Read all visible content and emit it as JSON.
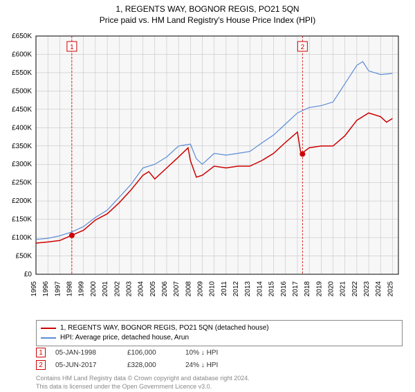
{
  "title": "1, REGENTS WAY, BOGNOR REGIS, PO21 5QN",
  "subtitle": "Price paid vs. HM Land Registry's House Price Index (HPI)",
  "chart": {
    "type": "line",
    "background_color": "#f7f7f7",
    "grid_color": "#bbbbbb",
    "axis_color": "#000000",
    "x_years": [
      1995,
      1996,
      1997,
      1998,
      1999,
      2000,
      2001,
      2002,
      2003,
      2004,
      2005,
      2006,
      2007,
      2008,
      2009,
      2010,
      2011,
      2012,
      2013,
      2014,
      2015,
      2016,
      2017,
      2018,
      2019,
      2020,
      2021,
      2022,
      2023,
      2024,
      2025
    ],
    "y_ticks": [
      0,
      50000,
      100000,
      150000,
      200000,
      250000,
      300000,
      350000,
      400000,
      450000,
      500000,
      550000,
      600000,
      650000
    ],
    "y_tick_labels": [
      "£0",
      "£50K",
      "£100K",
      "£150K",
      "£200K",
      "£250K",
      "£300K",
      "£350K",
      "£400K",
      "£450K",
      "£500K",
      "£550K",
      "£600K",
      "£650K"
    ],
    "ylim": [
      0,
      650000
    ],
    "xlim": [
      1995,
      2025.5
    ],
    "label_fontsize": 10,
    "series": [
      {
        "name": "price_paid",
        "color": "#cc0000",
        "width": 1.5,
        "x": [
          1995,
          1996,
          1997,
          1998,
          1999,
          2000,
          2001,
          2002,
          2003,
          2004,
          2004.5,
          2005,
          2006,
          2007,
          2007.8,
          2008,
          2008.5,
          2009,
          2010,
          2011,
          2012,
          2013,
          2014,
          2015,
          2016,
          2017,
          2017.3,
          2018,
          2019,
          2020,
          2021,
          2022,
          2023,
          2024,
          2024.5,
          2025
        ],
        "y": [
          85000,
          88000,
          92000,
          106000,
          120000,
          148000,
          165000,
          195000,
          230000,
          270000,
          280000,
          260000,
          290000,
          320000,
          345000,
          310000,
          265000,
          270000,
          295000,
          290000,
          295000,
          295000,
          310000,
          330000,
          360000,
          388000,
          328000,
          345000,
          350000,
          350000,
          378000,
          420000,
          440000,
          430000,
          415000,
          425000
        ]
      },
      {
        "name": "hpi",
        "color": "#5b8bd6",
        "width": 1.2,
        "x": [
          1995,
          1996,
          1997,
          1998,
          1999,
          2000,
          2001,
          2002,
          2003,
          2004,
          2005,
          2006,
          2007,
          2008,
          2008.5,
          2009,
          2010,
          2011,
          2012,
          2013,
          2014,
          2015,
          2016,
          2017,
          2018,
          2019,
          2020,
          2021,
          2022,
          2022.5,
          2023,
          2024,
          2025
        ],
        "y": [
          95000,
          98000,
          105000,
          115000,
          130000,
          155000,
          175000,
          210000,
          245000,
          290000,
          300000,
          320000,
          350000,
          355000,
          315000,
          300000,
          330000,
          325000,
          330000,
          335000,
          358000,
          380000,
          410000,
          440000,
          455000,
          460000,
          470000,
          520000,
          570000,
          580000,
          555000,
          545000,
          548000
        ]
      }
    ],
    "markers": [
      {
        "num": "1",
        "x": 1998.02,
        "y": 106000,
        "color": "#cc0000",
        "line_dash": "3,2"
      },
      {
        "num": "2",
        "x": 2017.43,
        "y": 328000,
        "color": "#cc0000",
        "line_dash": "3,2"
      }
    ],
    "marker_dot_radius": 4,
    "marker_box_top_offset": 8
  },
  "legend": {
    "items": [
      {
        "color": "#cc0000",
        "label": "1, REGENTS WAY, BOGNOR REGIS, PO21 5QN (detached house)"
      },
      {
        "color": "#5b8bd6",
        "label": "HPI: Average price, detached house, Arun"
      }
    ]
  },
  "sales": [
    {
      "num": "1",
      "date": "05-JAN-1998",
      "price": "£106,000",
      "pct": "10% ↓ HPI",
      "color": "#cc0000"
    },
    {
      "num": "2",
      "date": "05-JUN-2017",
      "price": "£328,000",
      "pct": "24% ↓ HPI",
      "color": "#cc0000"
    }
  ],
  "footnote_line1": "Contains HM Land Registry data © Crown copyright and database right 2024.",
  "footnote_line2": "This data is licensed under the Open Government Licence v3.0."
}
